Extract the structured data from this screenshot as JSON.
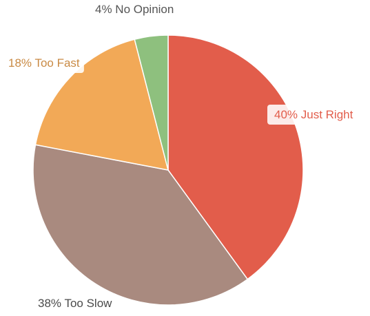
{
  "chart_data": {
    "type": "pie",
    "title": "",
    "slices": [
      {
        "label": "40% Just Right",
        "name": "Just Right",
        "value": 40,
        "color": "#e25d4b",
        "label_color": "#e25d4b"
      },
      {
        "label": "38% Too Slow",
        "name": "Too Slow",
        "value": 38,
        "color": "#a98a7f",
        "label_color": "#4a4a4a"
      },
      {
        "label": "18% Too Fast",
        "name": "Too Fast",
        "value": 18,
        "color": "#f2a957",
        "label_color": "#c98a44"
      },
      {
        "label": "4% No Opinion",
        "name": "No Opinion",
        "value": 4,
        "color": "#8ec07e",
        "label_color": "#555555"
      }
    ],
    "legend": "none",
    "start_angle_deg": 0,
    "direction": "clockwise"
  }
}
